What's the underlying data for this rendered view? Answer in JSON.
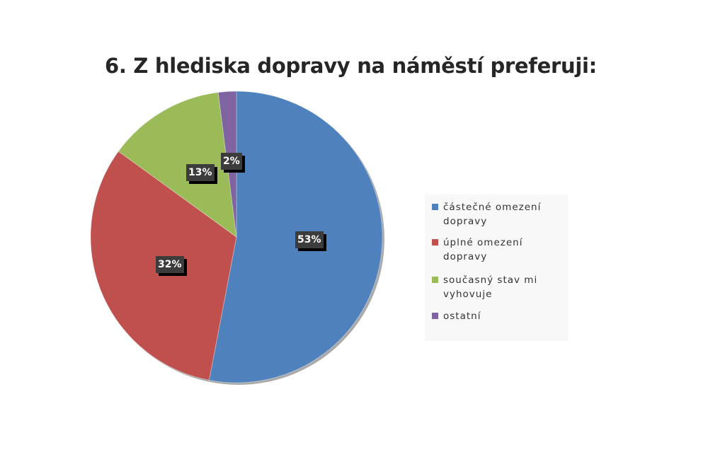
{
  "chart_data": {
    "type": "pie",
    "title": "6. Z hlediska dopravy na náměstí preferuji:",
    "categories": [
      "částečné omezení dopravy",
      "úplné omezení dopravy",
      "současný stav mi vyhovuje",
      "ostatní"
    ],
    "values": [
      53,
      32,
      13,
      2
    ],
    "labels": [
      "53%",
      "32%",
      "13%",
      "2%"
    ],
    "colors": [
      "#4f81bd",
      "#c0504d",
      "#9bbb59",
      "#8064a2"
    ],
    "legend": "right",
    "start_angle": "top, clockwise"
  }
}
